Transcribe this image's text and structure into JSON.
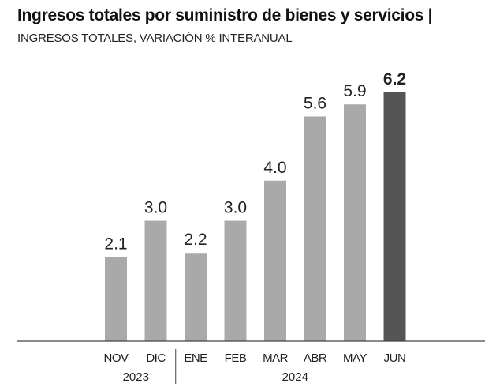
{
  "header": {
    "title": "Ingresos totales por suministro de bienes y servicios |",
    "subtitle": "INGRESOS TOTALES, VARIACIÓN % INTERANUAL"
  },
  "chart_data": {
    "type": "bar",
    "title": "Ingresos totales por suministro de bienes y servicios",
    "subtitle": "INGRESOS TOTALES, VARIACIÓN % INTERANUAL",
    "categories": [
      "NOV",
      "DIC",
      "ENE",
      "FEB",
      "MAR",
      "ABR",
      "MAY",
      "JUN"
    ],
    "values": [
      2.1,
      3.0,
      2.2,
      3.0,
      4.0,
      5.6,
      5.9,
      6.2
    ],
    "labels": [
      "2.1",
      "3.0",
      "2.2",
      "3.0",
      "4.0",
      "5.6",
      "5.9",
      "6.2"
    ],
    "highlight_index": 7,
    "groups": [
      {
        "label": "2023",
        "from": 0,
        "to": 1
      },
      {
        "label": "2024",
        "from": 2,
        "to": 7
      }
    ],
    "ylim": [
      0,
      6.2
    ],
    "xlabel": "",
    "ylabel": "",
    "grid": false,
    "colors": {
      "bar": "#a9a9a9",
      "highlight": "#555555",
      "axis": "#444444"
    }
  }
}
